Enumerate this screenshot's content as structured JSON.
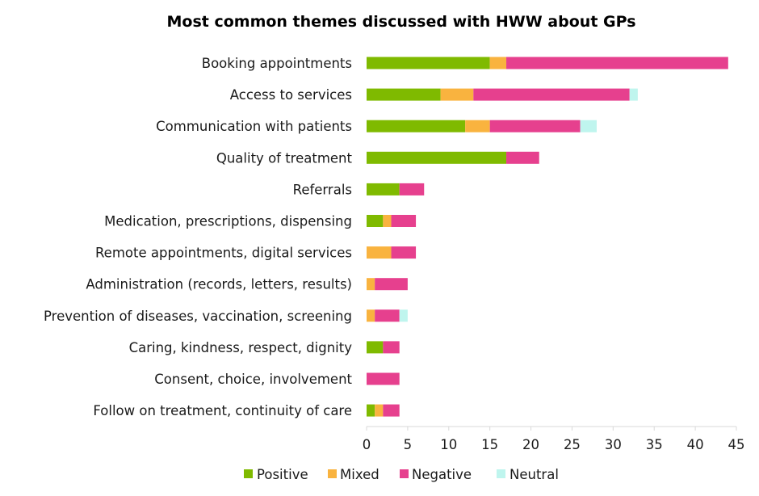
{
  "chart_data": {
    "type": "bar",
    "orientation": "horizontal",
    "stacked": true,
    "title": "Most common themes discussed with HWW about GPs",
    "xlabel": "",
    "ylabel": "",
    "xlim": [
      0,
      45
    ],
    "x_ticks": [
      "0",
      "5",
      "10",
      "15",
      "20",
      "25",
      "30",
      "35",
      "40",
      "45"
    ],
    "grid": false,
    "legend_position": "bottom",
    "categories": [
      "Booking appointments",
      "Access to services",
      "Communication with patients",
      "Quality of treatment",
      "Referrals",
      "Medication, prescriptions, dispensing",
      "Remote appointments, digital services",
      "Administration (records, letters, results)",
      "Prevention of diseases, vaccination, screening",
      "Caring, kindness, respect, dignity",
      "Consent, choice, involvement",
      "Follow on treatment, continuity of care"
    ],
    "series": [
      {
        "name": "Positive",
        "color": "#7fba00",
        "values": [
          15,
          9,
          12,
          17,
          4,
          2,
          0,
          0,
          0,
          2,
          0,
          1
        ]
      },
      {
        "name": "Mixed",
        "color": "#f9b33f",
        "values": [
          2,
          4,
          3,
          0,
          0,
          1,
          3,
          1,
          1,
          0,
          0,
          1
        ]
      },
      {
        "name": "Negative",
        "color": "#e6408e",
        "values": [
          27,
          19,
          11,
          4,
          3,
          3,
          3,
          4,
          3,
          2,
          4,
          2
        ]
      },
      {
        "name": "Neutral",
        "color": "#bff5ee",
        "values": [
          0,
          1,
          2,
          0,
          0,
          0,
          0,
          0,
          1,
          0,
          0,
          0
        ]
      }
    ]
  }
}
